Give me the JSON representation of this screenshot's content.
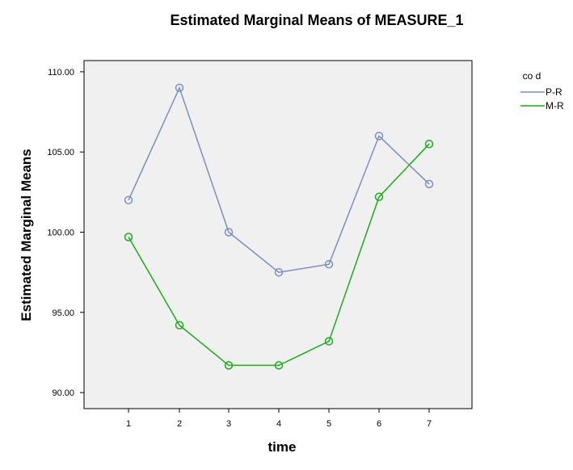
{
  "chart_data": {
    "type": "line",
    "title": "Estimated Marginal Means of MEASURE_1",
    "xlabel": "time",
    "ylabel": "Estimated Marginal Means",
    "categories": [
      "1",
      "2",
      "3",
      "4",
      "5",
      "6",
      "7"
    ],
    "yticks": [
      "90.00",
      "95.00",
      "100.00",
      "105.00",
      "110.00"
    ],
    "ylim": [
      89.0,
      110.7
    ],
    "grid": false,
    "plot_background": "#f0f0f0",
    "legend": {
      "title": "co d",
      "position": "top-right"
    },
    "series": [
      {
        "name": "P-R",
        "color": "#7b8fc4",
        "values": [
          102.0,
          109.0,
          100.0,
          97.5,
          98.0,
          106.0,
          103.0
        ]
      },
      {
        "name": "M-R",
        "color": "#1aae1a",
        "values": [
          99.7,
          94.2,
          91.7,
          91.7,
          93.2,
          102.2,
          105.5
        ]
      }
    ]
  }
}
